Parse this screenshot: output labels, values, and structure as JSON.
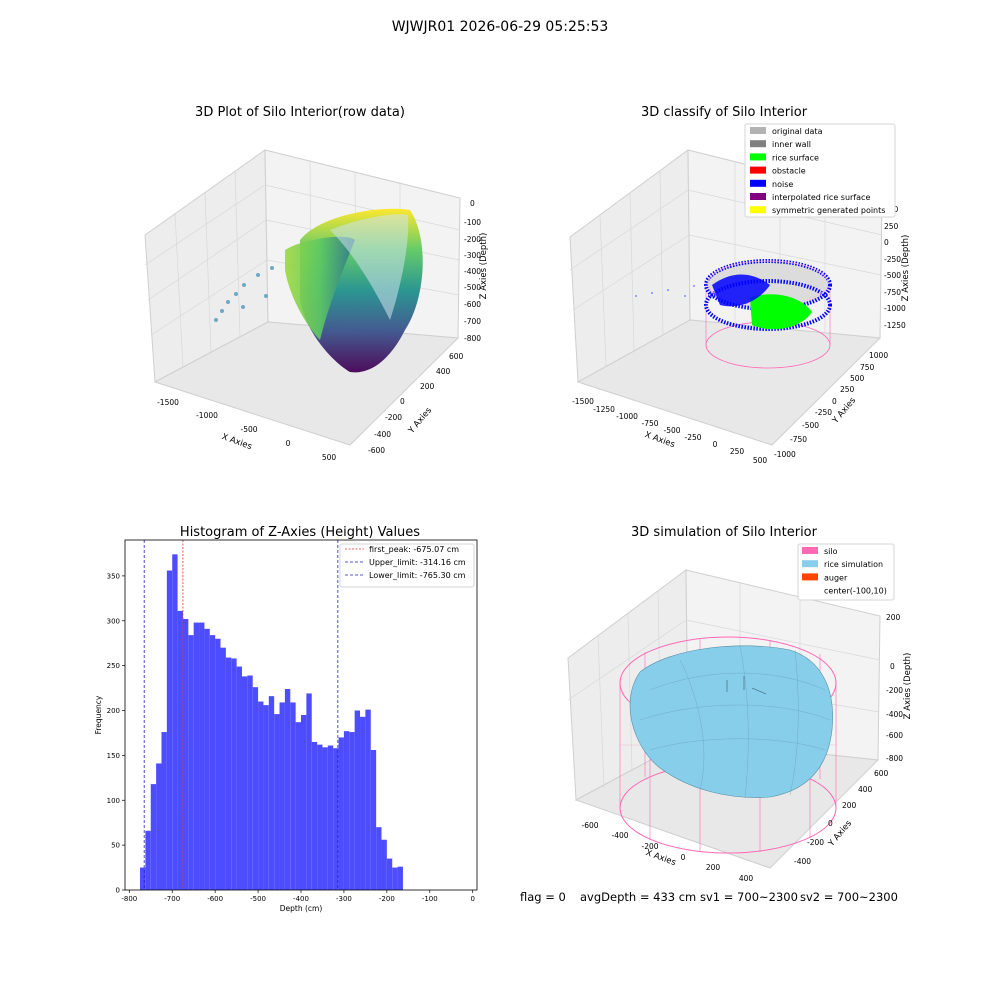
{
  "figure": {
    "title": "WJWJR01 2026-06-29 05:25:53",
    "footer": {
      "flag": "flag = 0",
      "avg": "avgDepth = 433 cm",
      "sv1": "sv1 = 700~2300",
      "sv2": "sv2 = 700~2300"
    }
  },
  "chart_data": [
    {
      "type": "scatter",
      "title": "3D Plot of Silo Interior(row data)",
      "xlabel": "X Axies",
      "ylabel": "Y Axies",
      "zlabel": "Z Axies (Depth)",
      "x_ticks": [
        "-1500",
        "-1000",
        "-500",
        "0",
        "500"
      ],
      "y_ticks": [
        "-600",
        "-400",
        "-200",
        "0",
        "200",
        "400",
        "600"
      ],
      "z_ticks": [
        "0",
        "-100",
        "-200",
        "-300",
        "-400",
        "-500",
        "-600",
        "-700",
        "-800"
      ],
      "colormap": "viridis"
    },
    {
      "type": "scatter",
      "title": "3D classify of Silo Interior",
      "xlabel": "X Axies",
      "ylabel": "Y Axies",
      "zlabel": "Z Axies (Depth)",
      "x_ticks": [
        "-1500",
        "-1250",
        "-1000",
        "-750",
        "-500",
        "-250",
        "0",
        "250",
        "500"
      ],
      "y_ticks": [
        "-1000",
        "-750",
        "-500",
        "-250",
        "0",
        "250",
        "500",
        "750",
        "1000"
      ],
      "z_ticks": [
        "500",
        "250",
        "0",
        "-250",
        "-500",
        "-750",
        "-1000",
        "-1250"
      ],
      "legend": [
        {
          "label": "original data",
          "color": "#b3b3b3"
        },
        {
          "label": "inner wall",
          "color": "#808080"
        },
        {
          "label": "rice surface",
          "color": "#00ff00"
        },
        {
          "label": "obstacle",
          "color": "#ff0000"
        },
        {
          "label": "noise",
          "color": "#0000ff"
        },
        {
          "label": "interpolated rice surface",
          "color": "#800080"
        },
        {
          "label": "symmetric generated points",
          "color": "#ffff00"
        }
      ]
    },
    {
      "type": "bar",
      "title": "Histogram of Z-Axies (Height) Values",
      "xlabel": "Depth (cm)",
      "ylabel": "Frequency",
      "xlim": [
        -810,
        10
      ],
      "ylim": [
        0,
        390
      ],
      "x_ticks": [
        -800,
        -700,
        -600,
        -500,
        -400,
        -300,
        -200,
        -100,
        0
      ],
      "y_ticks": [
        0,
        50,
        100,
        150,
        200,
        250,
        300,
        350
      ],
      "bin_start": -775,
      "bin_width": 12.5,
      "values": [
        25,
        66,
        118,
        141,
        176,
        356,
        374,
        311,
        302,
        284,
        298,
        298,
        291,
        284,
        280,
        270,
        259,
        258,
        249,
        238,
        239,
        226,
        210,
        206,
        216,
        196,
        209,
        224,
        209,
        187,
        195,
        219,
        165,
        162,
        159,
        161,
        158,
        170,
        177,
        176,
        200,
        193,
        201,
        156,
        70,
        56,
        35,
        25,
        26
      ],
      "bar_color": "#4d4dff",
      "lines": [
        {
          "label": "first_peak: -675.07 cm",
          "x": -675.07,
          "color": "#e03030",
          "dash": "2,1.5"
        },
        {
          "label": "Upper_limit: -314.16 cm",
          "x": -314.16,
          "color": "#2020c0",
          "dash": "3,2"
        },
        {
          "label": "Lower_limit: -765.30 cm",
          "x": -765.3,
          "color": "#2020c0",
          "dash": "3,2"
        }
      ]
    },
    {
      "type": "scatter",
      "title": "3D simulation of Silo Interior",
      "xlabel": "X Axies",
      "ylabel": "Y Axies",
      "zlabel": "Z Axies (Depth)",
      "x_ticks": [
        "-600",
        "-400",
        "-200",
        "0",
        "200",
        "400"
      ],
      "y_ticks": [
        "-400",
        "-200",
        "0",
        "200",
        "400",
        "600"
      ],
      "z_ticks": [
        "200",
        "0",
        "-200",
        "-400",
        "-600",
        "-800"
      ],
      "legend": [
        {
          "label": "silo",
          "color": "#ff69b4"
        },
        {
          "label": "rice simulation",
          "color": "#87ceeb"
        },
        {
          "label": "auger",
          "color": "#ff4500"
        },
        {
          "label": "center(-100,10)",
          "color": ""
        }
      ]
    }
  ]
}
